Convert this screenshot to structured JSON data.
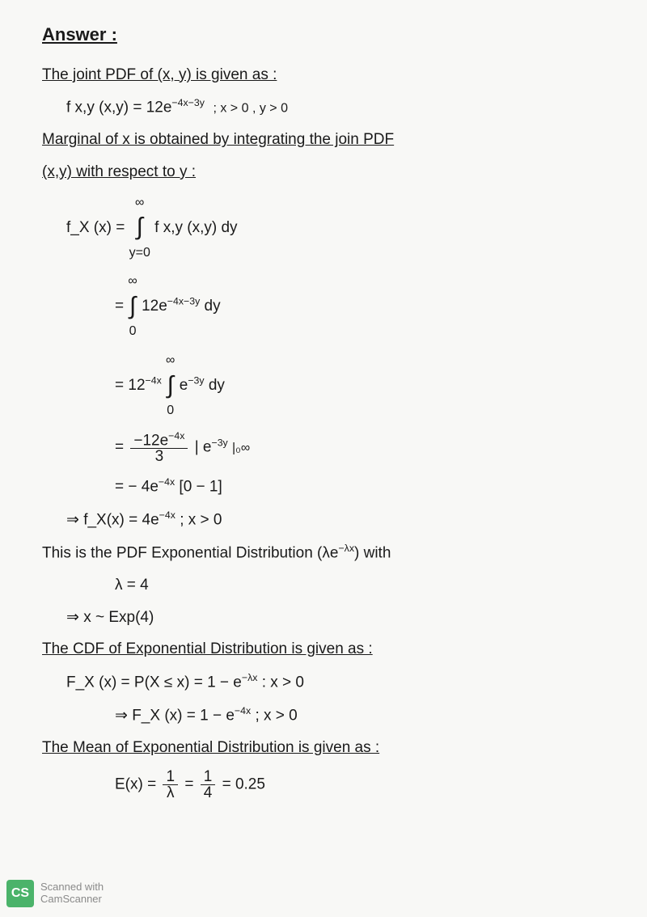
{
  "title": "Answer :",
  "intro": "The joint PDF of (x, y) is given as :",
  "pdf_formula": "f x,y (x,y) = 12e",
  "pdf_exp": "−4x−3y",
  "pdf_cond": "; x > 0 , y > 0",
  "marginal_heading_1": "Marginal of x is obtained by integrating the join PDF",
  "marginal_heading_2": "(x,y) with respect to y :",
  "fx_label": "f_X (x) =",
  "int_limits_top": "∞",
  "int_limits_bot": "y=0",
  "int1_body": "f x,y (x,y) dy",
  "int2_body_pre": "= ",
  "int2_limits_top": "∞",
  "int2_limits_bot": "0",
  "int2_body": " 12e",
  "int2_exp": "−4x−3y",
  "int2_dy": " dy",
  "int3_pre": "= 12",
  "int3_pre_exp": "−4x",
  "int3_limits_top": "∞",
  "int3_limits_bot": "0",
  "int3_body": " e",
  "int3_exp": "−3y",
  "int3_dy": " dy",
  "eval_pre": "= ",
  "eval_num": "−12e",
  "eval_num_exp": "−4x",
  "eval_den": "3",
  "eval_bracket": " | e",
  "eval_bracket_exp": "−3y",
  "eval_limits": " |₀∞",
  "eval2": "= − 4e",
  "eval2_exp": "−4x",
  "eval2_tail": " [0 − 1]",
  "result_arrow": "⇒  f_X(x)  = 4e",
  "result_exp": "−4x",
  "result_cond": " ;  x > 0",
  "exp_note_1": "This is the PDF Exponential Distribution (λe",
  "exp_note_1_exp": "−λx",
  "exp_note_1_tail": ") with",
  "lambda_line": "λ = 4",
  "x_exp_line": "⇒ x ~ Exp(4)",
  "cdf_heading": "The CDF of Exponential Distribution is given as :",
  "cdf_line1_pre": "F_X (x) = P(X ≤ x) = 1 − e",
  "cdf_line1_exp": "−λx",
  "cdf_line1_cond": "  :  x > 0",
  "cdf_line2_pre": "⇒ F_X (x) = 1 − e",
  "cdf_line2_exp": "−4x",
  "cdf_line2_cond": " ;  x > 0",
  "mean_heading": "The Mean of Exponential Distribution is given as :",
  "mean_line_pre": "E(x) = ",
  "mean_frac1_num": "1",
  "mean_frac1_den": "λ",
  "mean_eq": " = ",
  "mean_frac2_num": "1",
  "mean_frac2_den": "4",
  "mean_val": " = 0.25",
  "scan_logo": "CS",
  "scan_line1": "Scanned with",
  "scan_line2": "CamScanner"
}
